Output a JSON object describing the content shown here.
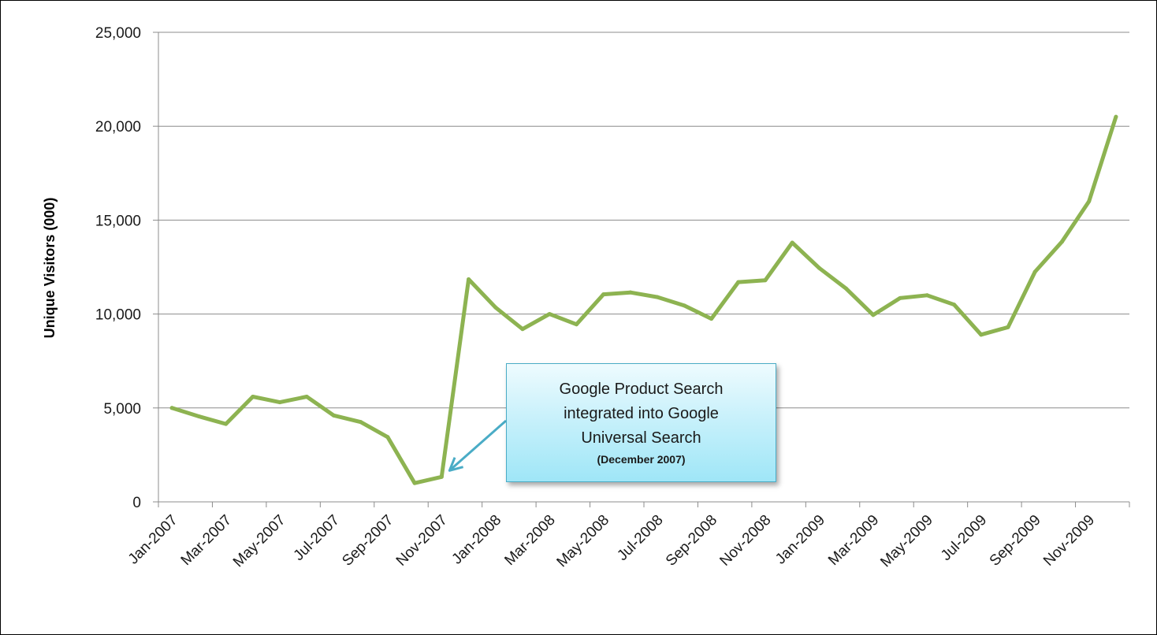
{
  "chart_data": {
    "type": "line",
    "title": "",
    "xlabel": "",
    "ylabel": "Unique Visitors (000)",
    "ylim": [
      0,
      25000
    ],
    "yticks": [
      0,
      5000,
      10000,
      15000,
      20000,
      25000
    ],
    "ytick_labels": [
      "0",
      "5,000",
      "10,000",
      "15,000",
      "20,000",
      "25,000"
    ],
    "xtick_labels": [
      "Jan-2007",
      "Mar-2007",
      "May-2007",
      "Jul-2007",
      "Sep-2007",
      "Nov-2007",
      "Jan-2008",
      "Mar-2008",
      "May-2008",
      "Jul-2008",
      "Sep-2008",
      "Nov-2008",
      "Jan-2009",
      "Mar-2009",
      "May-2009",
      "Jul-2009",
      "Sep-2009",
      "Nov-2009"
    ],
    "x": [
      "Jan-2007",
      "Feb-2007",
      "Mar-2007",
      "Apr-2007",
      "May-2007",
      "Jun-2007",
      "Jul-2007",
      "Aug-2007",
      "Sep-2007",
      "Oct-2007",
      "Nov-2007",
      "Dec-2007",
      "Jan-2008",
      "Feb-2008",
      "Mar-2008",
      "Apr-2008",
      "May-2008",
      "Jun-2008",
      "Jul-2008",
      "Aug-2008",
      "Sep-2008",
      "Oct-2008",
      "Nov-2008",
      "Dec-2008",
      "Jan-2009",
      "Feb-2009",
      "Mar-2009",
      "Apr-2009",
      "May-2009",
      "Jun-2009",
      "Jul-2009",
      "Aug-2009",
      "Sep-2009",
      "Oct-2009",
      "Nov-2009",
      "Dec-2009"
    ],
    "series": [
      {
        "color": "#8db351",
        "values": [
          5000,
          4550,
          4150,
          5600,
          5300,
          5600,
          4600,
          4250,
          3450,
          1000,
          1330,
          11850,
          10350,
          9200,
          10000,
          9450,
          11050,
          11150,
          10900,
          10450,
          9750,
          11700,
          11800,
          13800,
          12450,
          11350,
          9950,
          10850,
          11000,
          10500,
          8900,
          9300,
          12250,
          13850,
          16000,
          20500
        ]
      }
    ],
    "grid": "horizontal",
    "legend": "none",
    "annotation": {
      "lines": [
        "Google Product Search",
        "integrated into Google",
        "Universal Search"
      ],
      "sub": "(December 2007)",
      "points_to": "Nov-2007"
    }
  }
}
